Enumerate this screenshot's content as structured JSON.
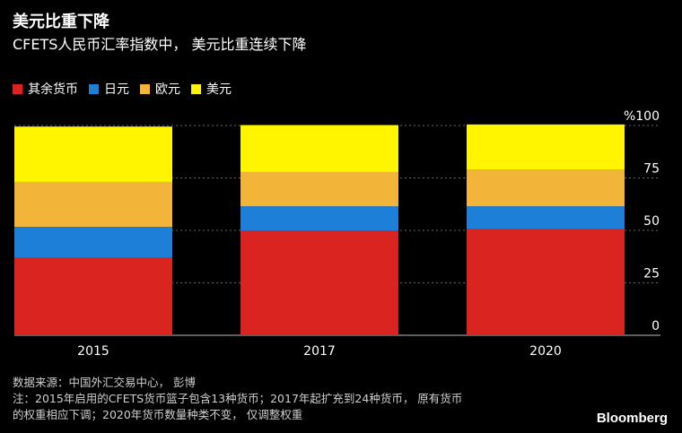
{
  "header": {
    "title": "美元比重下降",
    "subtitle": "CFETS人民币汇率指数中， 美元比重连续下降"
  },
  "legend": [
    {
      "label": "其余货币",
      "color": "#DA2420"
    },
    {
      "label": "日元",
      "color": "#1E7FD8"
    },
    {
      "label": "欧元",
      "color": "#F3B43A"
    },
    {
      "label": "美元",
      "color": "#FFF500"
    }
  ],
  "chart_data": {
    "type": "bar",
    "stacked": true,
    "categories": [
      "2015",
      "2017",
      "2020"
    ],
    "series": [
      {
        "name": "其余货币",
        "color": "#DA2420",
        "values": [
          37,
          50,
          50.5
        ]
      },
      {
        "name": "日元",
        "color": "#1E7FD8",
        "values": [
          14.7,
          11.5,
          11.0
        ]
      },
      {
        "name": "欧元",
        "color": "#F3B43A",
        "values": [
          21.4,
          16.3,
          17.4
        ]
      },
      {
        "name": "美元",
        "color": "#FFF500",
        "values": [
          26.4,
          22.4,
          21.6
        ]
      }
    ],
    "ylim": [
      0,
      100
    ],
    "yticks": [
      "0",
      "25",
      "50",
      "75",
      "%100"
    ],
    "grid": true,
    "legend_position": "top-left"
  },
  "footer": {
    "source": "数据来源：中国外汇交易中心， 彭博",
    "note_line1": "注：2015年启用的CFETS货币篮子包含13种货币；2017年起扩充到24种货币， 原有货币",
    "note_line2": "的权重相应下调；2020年货币数量种类不变， 仅调整权重",
    "brand": "Bloomberg"
  }
}
